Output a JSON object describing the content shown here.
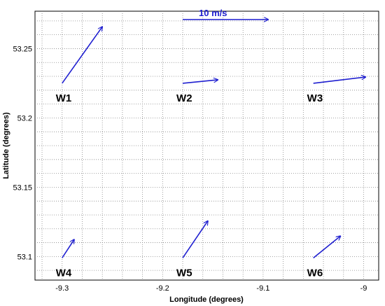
{
  "chart_data": {
    "type": "vector-field",
    "title": "",
    "xlabel": "Longitude (degrees)",
    "ylabel": "Latitude (degrees)",
    "xlim": [
      -9.327,
      -8.985
    ],
    "ylim": [
      53.083,
      53.277
    ],
    "x_ticks": [
      -9.3,
      -9.2,
      -9.1,
      -9.0
    ],
    "x_tick_labels": [
      "-9.3",
      "-9.2",
      "-9.1",
      "-9"
    ],
    "y_ticks": [
      53.1,
      53.15,
      53.2,
      53.25
    ],
    "y_tick_labels": [
      "53.1",
      "53.15",
      "53.2",
      "53.25"
    ],
    "grid": true,
    "arrow_color": "#1f1fd0",
    "reference_vector": {
      "label": "10 m/s",
      "speed": 10,
      "x": -9.18,
      "y": 53.271,
      "dx": 0.085,
      "dy": 0.0
    },
    "stations": [
      {
        "name": "W1",
        "x": -9.3,
        "y": 53.225,
        "dx": 0.04,
        "dy": 0.0408
      },
      {
        "name": "W2",
        "x": -9.18,
        "y": 53.225,
        "dx": 0.035,
        "dy": 0.0025
      },
      {
        "name": "W3",
        "x": -9.05,
        "y": 53.225,
        "dx": 0.052,
        "dy": 0.0045
      },
      {
        "name": "W4",
        "x": -9.3,
        "y": 53.099,
        "dx": 0.012,
        "dy": 0.0133
      },
      {
        "name": "W5",
        "x": -9.18,
        "y": 53.099,
        "dx": 0.025,
        "dy": 0.0267
      },
      {
        "name": "W6",
        "x": -9.05,
        "y": 53.099,
        "dx": 0.027,
        "dy": 0.0158
      }
    ]
  }
}
